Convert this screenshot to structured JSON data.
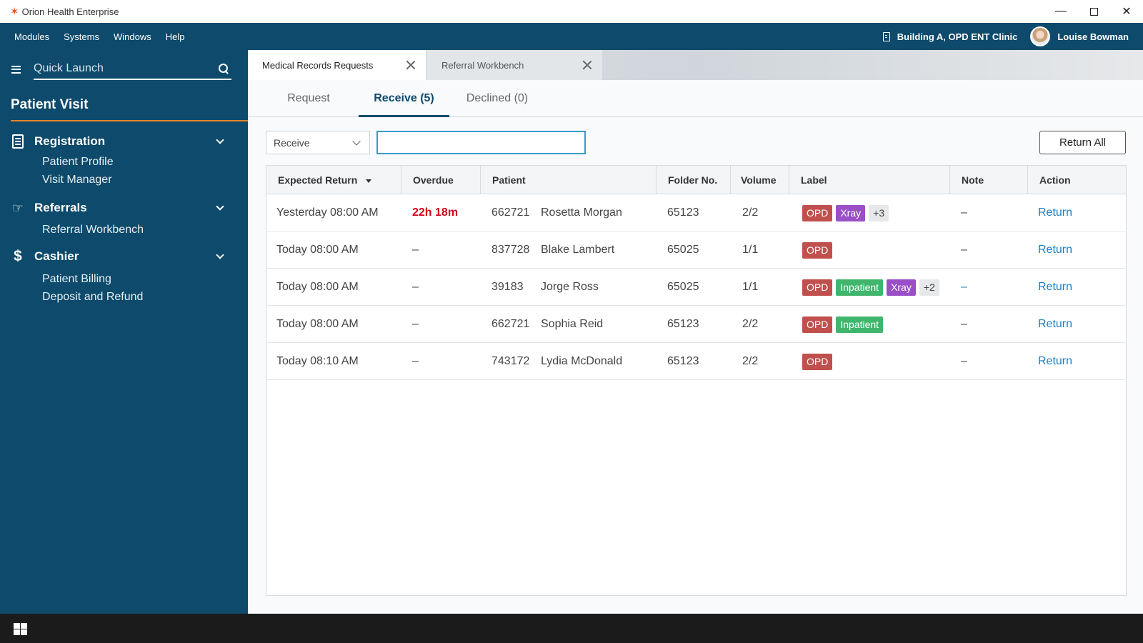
{
  "window": {
    "title": "Orion Health Enterprise",
    "controls": [
      "minimize",
      "maximize",
      "close"
    ]
  },
  "menubar": {
    "items": [
      "Modules",
      "Systems",
      "Windows",
      "Help"
    ],
    "location": "Building A, OPD ENT Clinic",
    "user": "Louise Bowman"
  },
  "sidebar": {
    "quick_launch_placeholder": "Quick Launch",
    "title": "Patient Visit",
    "sections": [
      {
        "label": "Registration",
        "icon": "document-icon",
        "items": [
          "Patient Profile",
          "Visit Manager"
        ]
      },
      {
        "label": "Referrals",
        "icon": "referral-hand-icon",
        "items": [
          "Referral Workbench"
        ]
      },
      {
        "label": "Cashier",
        "icon": "dollar-icon",
        "items": [
          "Patient Billing",
          "Deposit and Refund"
        ]
      }
    ]
  },
  "tabs": [
    {
      "label": "Medical Records Requests",
      "active": true
    },
    {
      "label": "Referral Workbench",
      "active": false
    }
  ],
  "subtabs": [
    "Request",
    "Receive (5)",
    "Declined (0)"
  ],
  "filter": {
    "select_value": "Receive",
    "search_value": ""
  },
  "toolbar": {
    "return_all": "Return All"
  },
  "table": {
    "columns": [
      "Expected Return",
      "Overdue",
      "Patient",
      "Folder No.",
      "Volume",
      "Label",
      "Note",
      "Action"
    ],
    "rows": [
      {
        "expected": "Yesterday 08:00 AM",
        "overdue": "22h 18m",
        "patient_id": "662721",
        "patient_name": "Rosetta Morgan",
        "folder": "65123",
        "volume": "2/2",
        "labels": [
          "OPD",
          "Xray",
          "+3"
        ],
        "note": "–",
        "action": "Return"
      },
      {
        "expected": "Today 08:00 AM",
        "overdue": "–",
        "patient_id": "837728",
        "patient_name": "Blake Lambert",
        "folder": "65025",
        "volume": "1/1",
        "labels": [
          "OPD"
        ],
        "note": "–",
        "action": "Return"
      },
      {
        "expected": "Today 08:00 AM",
        "overdue": "–",
        "patient_id": "39183",
        "patient_name": "Jorge Ross",
        "folder": "65025",
        "volume": "1/1",
        "labels": [
          "OPD",
          "Inpatient",
          "Xray",
          "+2"
        ],
        "note": "–",
        "action": "Return"
      },
      {
        "expected": "Today 08:00 AM",
        "overdue": "–",
        "patient_id": "662721",
        "patient_name": "Sophia Reid",
        "folder": "65123",
        "volume": "2/2",
        "labels": [
          "OPD",
          "Inpatient"
        ],
        "note": "–",
        "action": "Return"
      },
      {
        "expected": "Today 08:10 AM",
        "overdue": "–",
        "patient_id": "743172",
        "patient_name": "Lydia McDonald",
        "folder": "65123",
        "volume": "2/2",
        "labels": [
          "OPD"
        ],
        "note": "–",
        "action": "Return"
      }
    ]
  },
  "colors": {
    "brand": "#0d4a6b",
    "accent": "#e8822a",
    "overdue": "#d0021b",
    "link": "#1a7fbf",
    "label_opd": "#c0504d",
    "label_xray": "#9b4fc6",
    "label_inpatient": "#3fb66c"
  }
}
